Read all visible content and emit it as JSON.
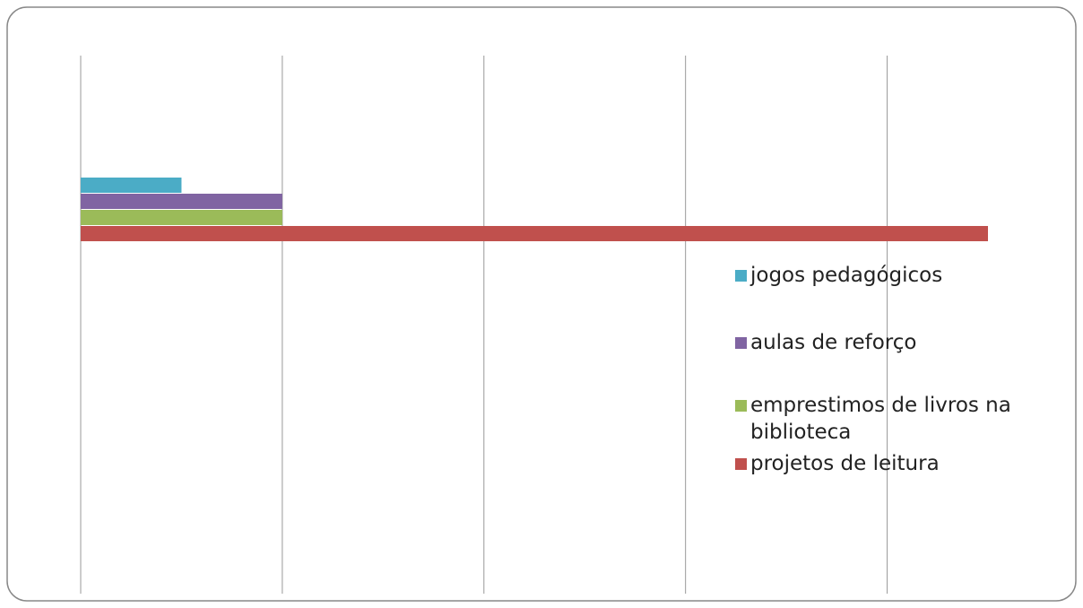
{
  "chart_data": {
    "type": "bar",
    "orientation": "horizontal",
    "categories": [
      null
    ],
    "series": [
      {
        "name": "jogos pedagógicos",
        "color": "#4bacc6",
        "values": [
          0.5
        ]
      },
      {
        "name": "aulas de reforço",
        "color": "#8064a2",
        "values": [
          1
        ]
      },
      {
        "name": "emprestimos de livros na biblioteca",
        "color": "#9bbb59",
        "values": [
          1
        ]
      },
      {
        "name": "projetos de leitura",
        "color": "#c0504d",
        "values": [
          4.5
        ]
      }
    ],
    "xlim": [
      0,
      4.5
    ],
    "xticks": [
      0,
      1,
      2,
      3,
      4
    ],
    "grid": true,
    "legend": "right"
  }
}
